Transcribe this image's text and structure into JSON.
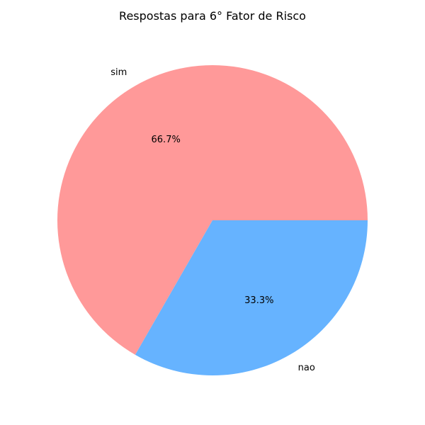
{
  "chart_data": {
    "type": "pie",
    "title": "Respostas para 6° Fator de Risco",
    "categories": [
      "sim",
      "nao"
    ],
    "values": [
      66.7,
      33.3
    ],
    "percent_labels": [
      "66.7%",
      "33.3%"
    ],
    "colors": [
      "#ff9999",
      "#66b3ff"
    ],
    "start_angle_deg": 0,
    "direction": "counterclockwise",
    "legend": "none"
  }
}
